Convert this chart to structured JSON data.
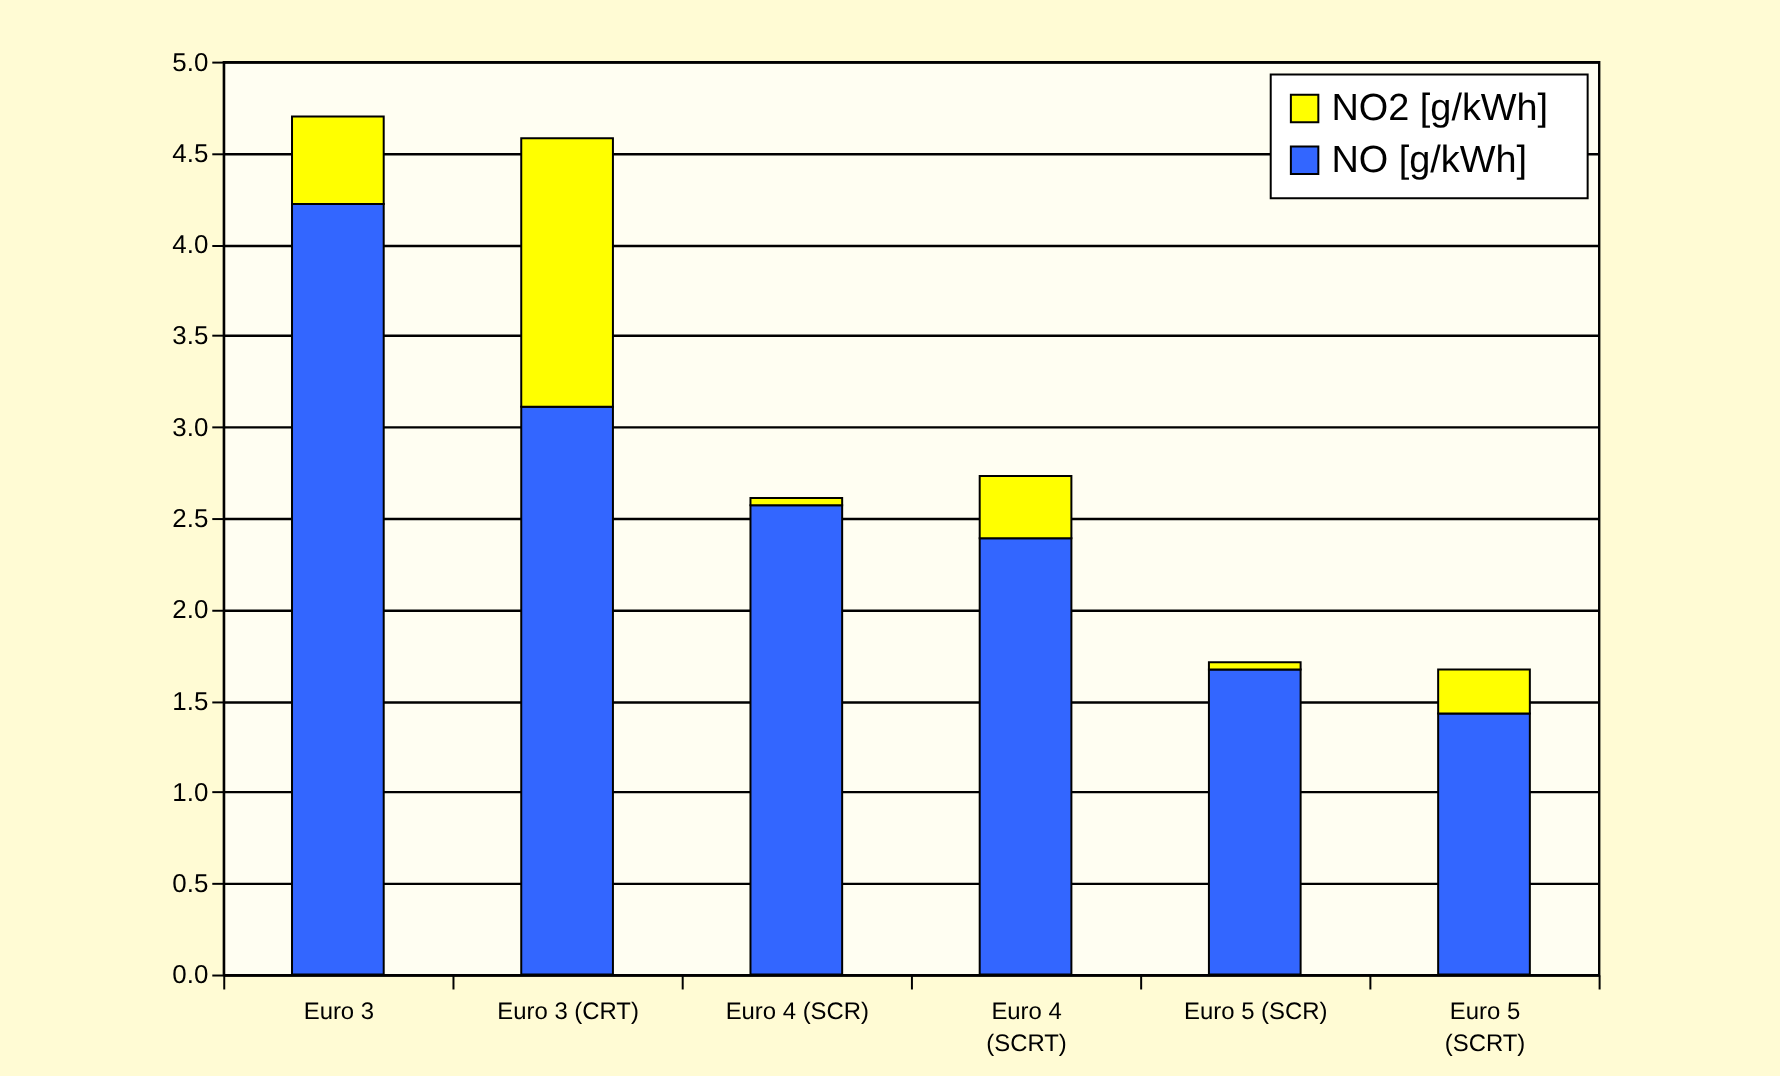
{
  "chart_data": {
    "type": "bar",
    "stacked": true,
    "categories": [
      "Euro 3",
      "Euro 3 (CRT)",
      "Euro 4 (SCR)",
      "Euro 4 (SCRT)",
      "Euro 5 (SCR)",
      "Euro 5 (SCRT)"
    ],
    "series": [
      {
        "name": "NO   [g/kWh]",
        "color": "#3366ff",
        "values": [
          4.22,
          3.11,
          2.57,
          2.39,
          1.67,
          1.43
        ]
      },
      {
        "name": "NO2   [g/kWh]",
        "color": "#ffff00",
        "values": [
          0.48,
          1.47,
          0.04,
          0.34,
          0.04,
          0.24
        ]
      }
    ],
    "ylim": [
      0,
      5
    ],
    "yticks": [
      {
        "value": 0,
        "label": "0.0"
      },
      0.5,
      {
        "value": 1,
        "label": "1.0"
      },
      1.5,
      {
        "value": 2,
        "label": "2.0"
      },
      2.5,
      {
        "value": 3,
        "label": "3.0"
      },
      3.5,
      {
        "value": 4,
        "label": "4.0"
      },
      4.5,
      {
        "value": 5,
        "label": "5.0"
      }
    ],
    "grid": "y",
    "legend": "top right"
  }
}
